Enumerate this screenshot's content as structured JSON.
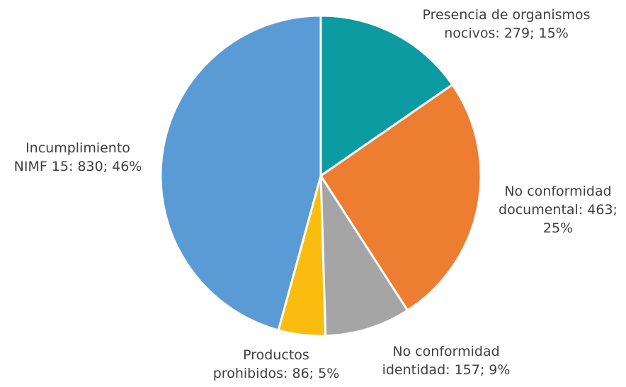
{
  "chart_data": {
    "type": "pie",
    "title": "",
    "start_angle_deg": 0,
    "direction": "clockwise",
    "slices": [
      {
        "name": "Presencia de organismos nocivos",
        "value": 279,
        "percent": "15%",
        "color": "#0b9ba1",
        "label_lines": [
          "Presencia de organismos",
          "nocivos: 279; 15%"
        ]
      },
      {
        "name": "No conformidad documental",
        "value": 463,
        "percent": "25%",
        "color": "#ed7d31",
        "label_lines": [
          "No conformidad",
          "documental: 463;",
          "25%"
        ]
      },
      {
        "name": "No conformidad identidad",
        "value": 157,
        "percent": "9%",
        "color": "#a5a5a5",
        "label_lines": [
          "No conformidad",
          "identidad: 157; 9%"
        ]
      },
      {
        "name": "Productos prohibidos",
        "value": 86,
        "percent": "5%",
        "color": "#fbbc10",
        "label_lines": [
          "Productos",
          "prohibidos: 86; 5%"
        ]
      },
      {
        "name": "Incumplimiento NIMF 15",
        "value": 830,
        "percent": "46%",
        "color": "#5b9bd5",
        "label_lines": [
          "Incumplimiento",
          "NIMF 15: 830; 46%"
        ]
      }
    ]
  }
}
